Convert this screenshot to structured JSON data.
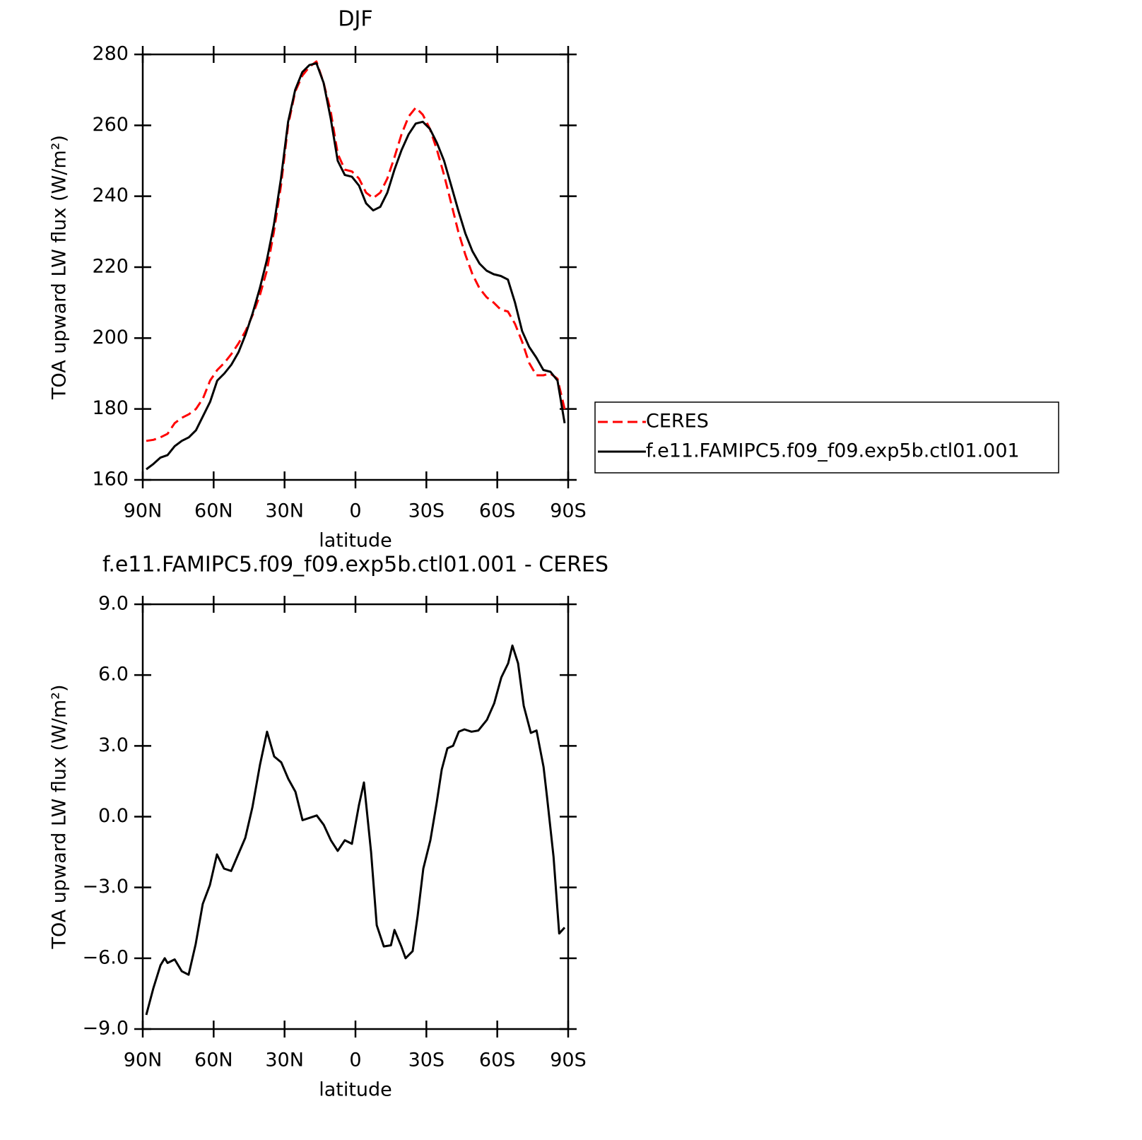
{
  "chart_data": [
    {
      "type": "line",
      "title": "DJF",
      "xlabel": "latitude",
      "ylabel": "TOA upward LW flux (W/m²)",
      "x": [
        88.5,
        85.5,
        82.5,
        79.5,
        76.5,
        73.5,
        70.5,
        67.5,
        64.5,
        61.5,
        58.5,
        55.5,
        52.5,
        49.5,
        46.5,
        43.5,
        40.5,
        37.5,
        34.5,
        31.5,
        28.5,
        25.5,
        22.5,
        19.5,
        16.5,
        13.5,
        10.5,
        7.5,
        4.5,
        1.5,
        -1.5,
        -4.5,
        -7.5,
        -10.5,
        -13.5,
        -16.5,
        -19.5,
        -22.5,
        -25.5,
        -28.5,
        -31.5,
        -34.5,
        -37.5,
        -40.5,
        -43.5,
        -46.5,
        -49.5,
        -52.5,
        -55.5,
        -58.5,
        -61.5,
        -64.5,
        -67.5,
        -70.5,
        -73.5,
        -76.5,
        -79.5,
        -82.5,
        -85.5,
        -88.5
      ],
      "series": [
        {
          "name": "CERES",
          "color": "#ff0000",
          "dash": true,
          "values": [
            171,
            171.3,
            172,
            173,
            176,
            177.5,
            178.5,
            180,
            183,
            188,
            191,
            193,
            195.5,
            198.5,
            202,
            206.5,
            212,
            219,
            230,
            243,
            260,
            269.5,
            274,
            276.5,
            278,
            272,
            264,
            252,
            247.5,
            247,
            245,
            241,
            239.5,
            241,
            245,
            251,
            257.5,
            262.5,
            265,
            263,
            259,
            253,
            246,
            238,
            230,
            223.5,
            218,
            214,
            211.5,
            210,
            208,
            207.5,
            204,
            199,
            193,
            189.5,
            189.5,
            190,
            188.5,
            180
          ]
        },
        {
          "name": "f.e11.FAMIPC5.f09_f09.exp5b.ctl01.001",
          "color": "#000000",
          "dash": false,
          "values": [
            163,
            164.5,
            166.3,
            167,
            169.5,
            171,
            172,
            174,
            178,
            182,
            188,
            190,
            192.5,
            196,
            201,
            207,
            214,
            222,
            232,
            245,
            261,
            270,
            275,
            277,
            277.5,
            272,
            262,
            250,
            246,
            245.5,
            243,
            238,
            236,
            237,
            241,
            247.5,
            253,
            257.5,
            260.5,
            261,
            259,
            255,
            250,
            243,
            236,
            229.5,
            224.5,
            221,
            219,
            218,
            217.5,
            216.5,
            210,
            202,
            197.5,
            194.5,
            191,
            190.5,
            188,
            176
          ]
        }
      ],
      "xlim": [
        90,
        -90
      ],
      "xticks": [
        {
          "value": 90,
          "label": "90N"
        },
        {
          "value": 60,
          "label": "60N"
        },
        {
          "value": 30,
          "label": "30N"
        },
        0,
        {
          "value": -30,
          "label": "30S"
        },
        {
          "value": -60,
          "label": "60S"
        },
        {
          "value": -90,
          "label": "90S"
        }
      ],
      "ylim": [
        160,
        280
      ],
      "yticks": [
        160,
        180,
        200,
        220,
        240,
        260,
        280
      ],
      "legend": "right"
    },
    {
      "type": "line",
      "title": "f.e11.FAMIPC5.f09_f09.exp5b.ctl01.001 - CERES",
      "xlabel": "latitude",
      "ylabel": "TOA upward LW flux (W/m²)",
      "x": [
        88.5,
        85.5,
        82.5,
        80.7,
        79.5,
        76.5,
        73.5,
        70.6,
        67.6,
        64.6,
        61.6,
        58.6,
        55.6,
        52.6,
        49.6,
        46.6,
        43.6,
        40.4,
        37.4,
        34.4,
        31.4,
        28.4,
        25.4,
        22.4,
        19.4,
        16.4,
        13.4,
        10.4,
        7.5,
        4.5,
        1.5,
        -1.5,
        -3.6,
        -6.6,
        -9.0,
        -12.0,
        -15.0,
        -16.5,
        -19.4,
        -21.2,
        -24.2,
        -26.3,
        -28.7,
        -31.7,
        -34.4,
        -36.5,
        -38.9,
        -41.3,
        -43.7,
        -46.1,
        -49.1,
        -52.0,
        -55.6,
        -58.7,
        -61.7,
        -64.6,
        -66.4,
        -68.8,
        -71.2,
        -74.2,
        -76.6,
        -79.6,
        -81.1,
        -83.8,
        -86.2,
        -88.5
      ],
      "values": [
        -8.4,
        -7.26,
        -6.3,
        -6.0,
        -6.2,
        -6.05,
        -6.55,
        -6.7,
        -5.4,
        -3.7,
        -2.9,
        -1.6,
        -2.2,
        -2.3,
        -1.6,
        -0.9,
        0.4,
        2.2,
        3.6,
        2.55,
        2.3,
        1.6,
        1.05,
        -0.15,
        -0.05,
        0.05,
        -0.35,
        -1.0,
        -1.45,
        -1.0,
        -1.15,
        0.5,
        1.45,
        -1.5,
        -4.6,
        -5.5,
        -5.45,
        -4.8,
        -5.5,
        -6.0,
        -5.7,
        -4.2,
        -2.2,
        -1.0,
        0.6,
        2.0,
        2.9,
        3.0,
        3.6,
        3.7,
        3.6,
        3.65,
        4.1,
        4.8,
        5.9,
        6.5,
        7.25,
        6.5,
        4.7,
        3.55,
        3.65,
        2.1,
        0.8,
        -1.7,
        -4.95,
        -4.7
      ],
      "color": "#000000",
      "xlim": [
        90,
        -90
      ],
      "xticks": [
        {
          "value": 90,
          "label": "90N"
        },
        {
          "value": 60,
          "label": "60N"
        },
        {
          "value": 30,
          "label": "30N"
        },
        0,
        {
          "value": -30,
          "label": "30S"
        },
        {
          "value": -60,
          "label": "60S"
        },
        {
          "value": -90,
          "label": "90S"
        }
      ],
      "ylim": [
        -9,
        9
      ],
      "yticks": [
        {
          "value": -9,
          "label": "−9.0"
        },
        {
          "value": -6,
          "label": "−6.0"
        },
        {
          "value": -3,
          "label": "−3.0"
        },
        {
          "value": 0,
          "label": "0.0"
        },
        {
          "value": 3,
          "label": "3.0"
        },
        {
          "value": 6,
          "label": "6.0"
        },
        {
          "value": 9,
          "label": "9.0"
        }
      ]
    }
  ]
}
